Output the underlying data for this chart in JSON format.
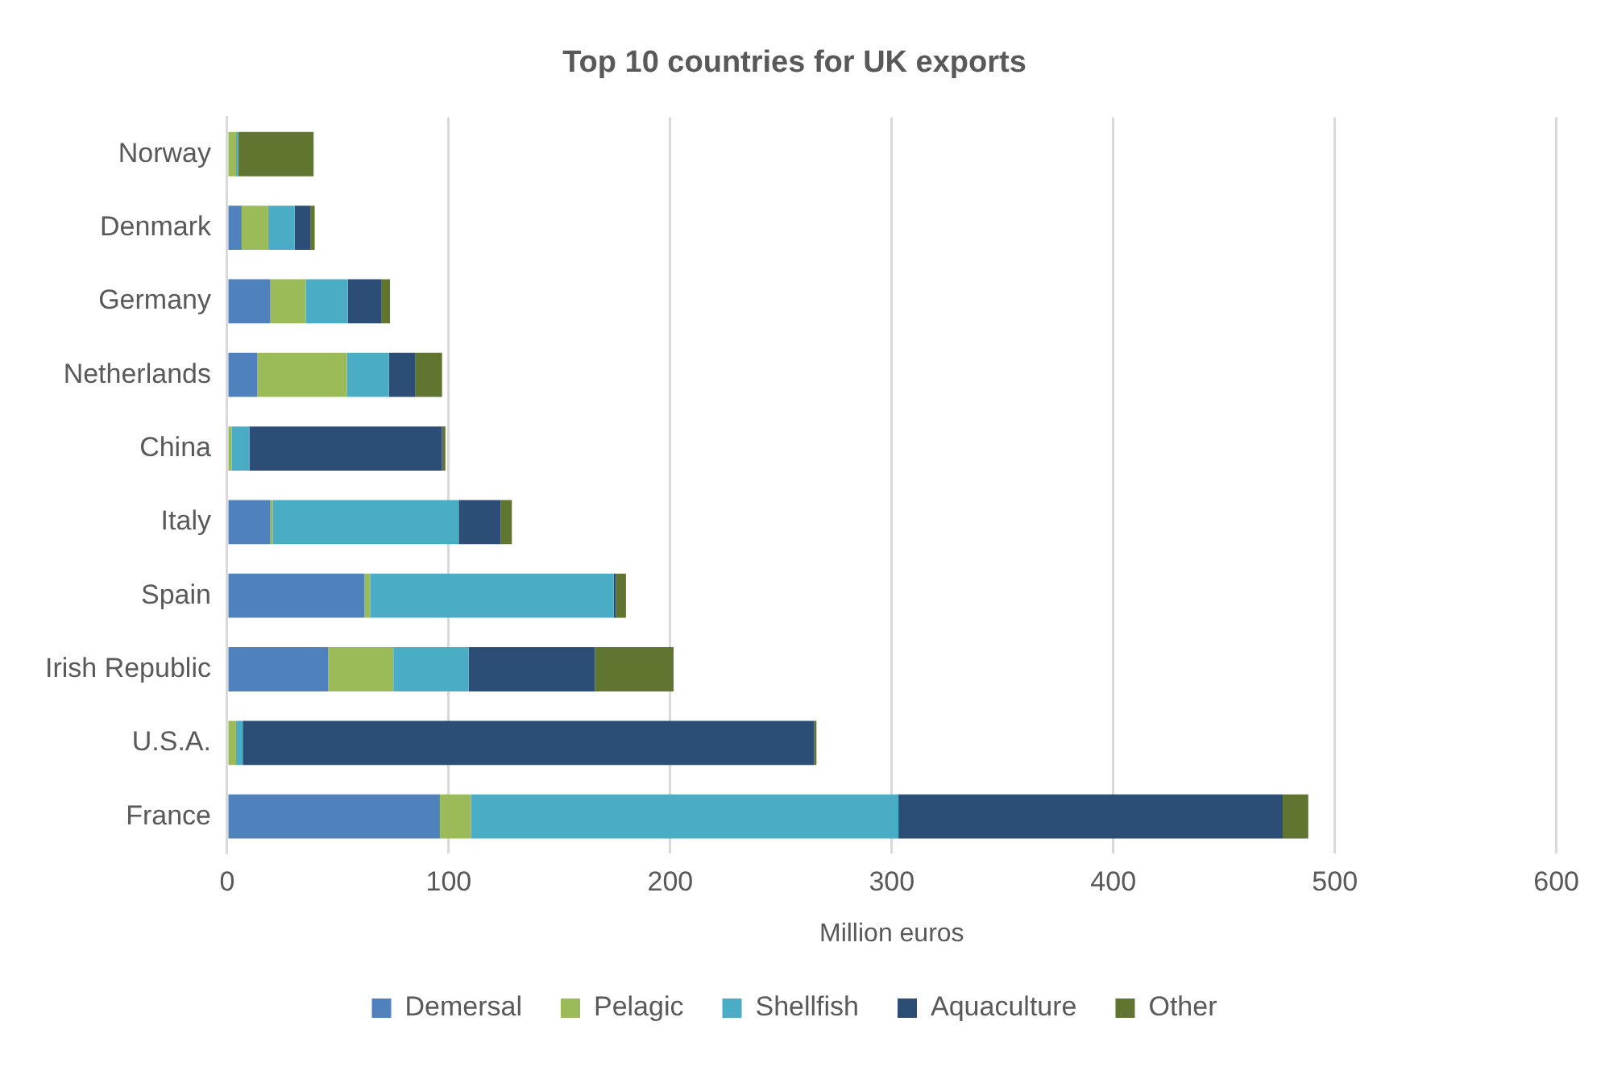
{
  "chart_data": {
    "type": "bar",
    "orientation": "horizontal",
    "stacked": true,
    "title": "Top 10 countries for UK exports",
    "xlabel": "Million euros",
    "categories": [
      "Norway",
      "Denmark",
      "Germany",
      "Netherlands",
      "China",
      "Italy",
      "Spain",
      "Irish Republic",
      "U.S.A.",
      "France"
    ],
    "series": [
      {
        "name": "Demersal",
        "color": "#4f81bd",
        "values": [
          0,
          6.5,
          19.5,
          13.5,
          0,
          19.5,
          62,
          45.5,
          0,
          96
        ]
      },
      {
        "name": "Pelagic",
        "color": "#9bbb59",
        "values": [
          4,
          12,
          16,
          40.5,
          2,
          1,
          2.5,
          29.5,
          4,
          14
        ]
      },
      {
        "name": "Shellfish",
        "color": "#4bacc6",
        "values": [
          1,
          12,
          19,
          19,
          8,
          84,
          110,
          34,
          3,
          193
        ]
      },
      {
        "name": "Aquaculture",
        "color": "#2c4d75",
        "values": [
          0,
          7,
          15,
          12,
          87,
          19,
          1,
          57,
          258,
          173.5
        ]
      },
      {
        "name": "Other",
        "color": "#5f7530",
        "values": [
          34,
          2,
          4,
          12,
          1.5,
          5,
          4.5,
          35.5,
          1,
          11.5
        ]
      }
    ],
    "xlim": [
      0,
      600
    ],
    "xticks": [
      0,
      100,
      200,
      300,
      400,
      500,
      600
    ],
    "grid": "x",
    "legend": "bottom"
  }
}
